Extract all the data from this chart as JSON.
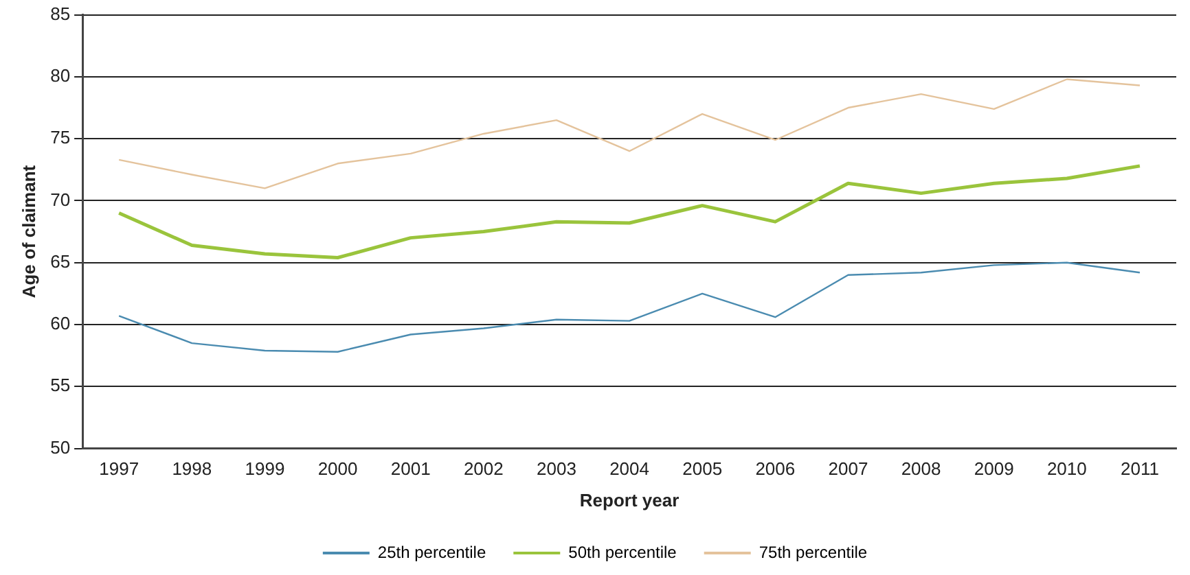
{
  "chart_data": {
    "type": "line",
    "xlabel": "Report year",
    "ylabel": "Age of claimant",
    "categories": [
      "1997",
      "1998",
      "1999",
      "2000",
      "2001",
      "2002",
      "2003",
      "2004",
      "2005",
      "2006",
      "2007",
      "2008",
      "2009",
      "2010",
      "2011"
    ],
    "series": [
      {
        "name": "25th percentile",
        "color": "#4a8bb0",
        "values": [
          60.7,
          58.5,
          57.9,
          57.8,
          59.2,
          59.7,
          60.4,
          60.3,
          62.5,
          60.6,
          64.0,
          64.2,
          64.8,
          65.0,
          64.2
        ]
      },
      {
        "name": "50th percentile",
        "color": "#9ac43c",
        "values": [
          69.0,
          66.4,
          65.7,
          65.4,
          67.0,
          67.5,
          68.3,
          68.2,
          69.6,
          68.3,
          71.4,
          70.6,
          71.4,
          71.8,
          72.8
        ]
      },
      {
        "name": "75th percentile",
        "color": "#e4c39c",
        "values": [
          73.3,
          72.1,
          71.0,
          73.0,
          73.8,
          75.4,
          76.5,
          74.0,
          77.0,
          74.9,
          77.5,
          78.6,
          77.4,
          79.8,
          79.3
        ]
      }
    ],
    "ylim": [
      50,
      85
    ],
    "yticks": [
      50,
      55,
      60,
      65,
      70,
      75,
      80,
      85
    ],
    "grid": "y",
    "legend": "bottom",
    "marker": "none",
    "line_style": "solid"
  }
}
